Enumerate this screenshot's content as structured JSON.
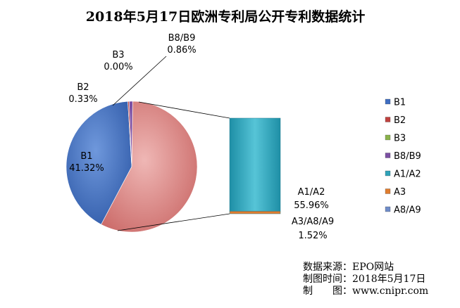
{
  "chart_data": {
    "type": "pie",
    "title": "2018年5月17日欧洲专利局公开专利数据统计",
    "slices": [
      {
        "name": "B1",
        "value": 41.32,
        "label": "41.32%",
        "color": "#3F6EC2"
      },
      {
        "name": "B2",
        "value": 0.33,
        "label": "0.33%",
        "color": "#C0413E"
      },
      {
        "name": "B3",
        "value": 0.0,
        "label": "0.00%",
        "color": "#8AB24A"
      },
      {
        "name": "B8/B9",
        "value": 0.86,
        "label": "0.86%",
        "color": "#7B4FA3"
      },
      {
        "name": "A1/A2",
        "value": 55.96,
        "label": "55.96%",
        "color": "#D98684"
      },
      {
        "name": "A3/A8/A9",
        "value": 1.52,
        "label": "1.52%",
        "color": "#E07D2E"
      }
    ],
    "bar_of_pie": {
      "segments": [
        {
          "name": "A1/A2",
          "value": 55.96,
          "color": "#2FA3B9"
        },
        {
          "name": "A3/A8/A9",
          "value": 1.52,
          "color": "#E07D2E"
        }
      ]
    },
    "legend": {
      "position": "right",
      "items": [
        {
          "label": "B1",
          "color": "#3F6EC2"
        },
        {
          "label": "B2",
          "color": "#C0413E"
        },
        {
          "label": "B3",
          "color": "#8AB24A"
        },
        {
          "label": "B8/B9",
          "color": "#7B4FA3"
        },
        {
          "label": "A1/A2",
          "color": "#2FA3B9"
        },
        {
          "label": "A3",
          "color": "#E07D2E"
        },
        {
          "label": "A8/A9",
          "color": "#6F8CC9"
        }
      ]
    }
  },
  "source": {
    "line1": "数据来源：EPO网站",
    "line2": "制图时间：2018年5月17日",
    "line3": "制　　图：www.cnipr.com"
  }
}
